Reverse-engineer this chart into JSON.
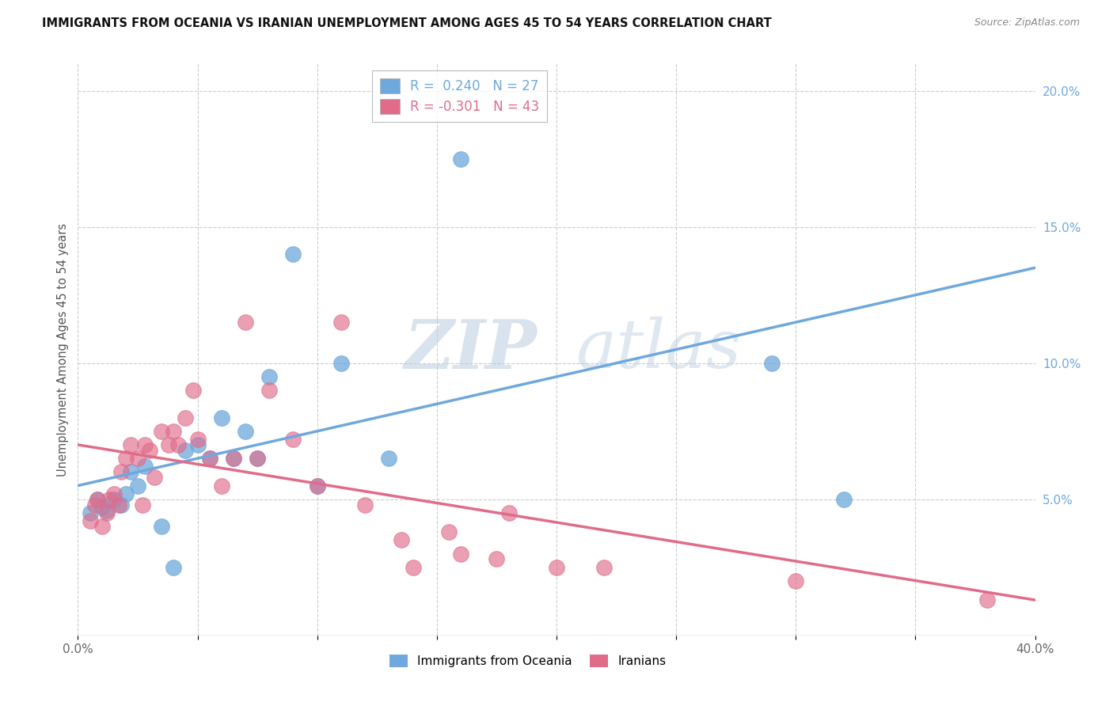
{
  "title": "IMMIGRANTS FROM OCEANIA VS IRANIAN UNEMPLOYMENT AMONG AGES 45 TO 54 YEARS CORRELATION CHART",
  "source": "Source: ZipAtlas.com",
  "ylabel": "Unemployment Among Ages 45 to 54 years",
  "xlim": [
    0.0,
    0.4
  ],
  "ylim": [
    0.0,
    0.21
  ],
  "x_ticks": [
    0.0,
    0.05,
    0.1,
    0.15,
    0.2,
    0.25,
    0.3,
    0.35,
    0.4
  ],
  "x_tick_labels": [
    "0.0%",
    "",
    "",
    "",
    "",
    "",
    "",
    "",
    "40.0%"
  ],
  "y_ticks_right": [
    0.05,
    0.1,
    0.15,
    0.2
  ],
  "y_tick_labels_right": [
    "5.0%",
    "10.0%",
    "15.0%",
    "20.0%"
  ],
  "color_blue": "#6fa8dc",
  "color_pink": "#e06c8a",
  "watermark_zip": "ZIP",
  "watermark_atlas": "atlas",
  "blue_scatter_x": [
    0.005,
    0.008,
    0.01,
    0.012,
    0.015,
    0.018,
    0.02,
    0.022,
    0.025,
    0.028,
    0.035,
    0.04,
    0.045,
    0.05,
    0.055,
    0.06,
    0.065,
    0.07,
    0.075,
    0.08,
    0.09,
    0.1,
    0.11,
    0.13,
    0.16,
    0.29,
    0.32
  ],
  "blue_scatter_y": [
    0.045,
    0.05,
    0.047,
    0.046,
    0.05,
    0.048,
    0.052,
    0.06,
    0.055,
    0.062,
    0.04,
    0.025,
    0.068,
    0.07,
    0.065,
    0.08,
    0.065,
    0.075,
    0.065,
    0.095,
    0.14,
    0.055,
    0.1,
    0.065,
    0.175,
    0.1,
    0.05
  ],
  "pink_scatter_x": [
    0.005,
    0.007,
    0.008,
    0.01,
    0.012,
    0.013,
    0.015,
    0.017,
    0.018,
    0.02,
    0.022,
    0.025,
    0.027,
    0.028,
    0.03,
    0.032,
    0.035,
    0.038,
    0.04,
    0.042,
    0.045,
    0.048,
    0.05,
    0.055,
    0.06,
    0.065,
    0.07,
    0.075,
    0.08,
    0.09,
    0.1,
    0.11,
    0.12,
    0.135,
    0.14,
    0.155,
    0.16,
    0.175,
    0.18,
    0.2,
    0.22,
    0.3,
    0.38
  ],
  "pink_scatter_y": [
    0.042,
    0.048,
    0.05,
    0.04,
    0.045,
    0.05,
    0.052,
    0.048,
    0.06,
    0.065,
    0.07,
    0.065,
    0.048,
    0.07,
    0.068,
    0.058,
    0.075,
    0.07,
    0.075,
    0.07,
    0.08,
    0.09,
    0.072,
    0.065,
    0.055,
    0.065,
    0.115,
    0.065,
    0.09,
    0.072,
    0.055,
    0.115,
    0.048,
    0.035,
    0.025,
    0.038,
    0.03,
    0.028,
    0.045,
    0.025,
    0.025,
    0.02,
    0.013
  ],
  "blue_line_x": [
    0.0,
    0.4
  ],
  "blue_line_y": [
    0.055,
    0.135
  ],
  "pink_line_x": [
    0.0,
    0.4
  ],
  "pink_line_y": [
    0.07,
    0.013
  ]
}
